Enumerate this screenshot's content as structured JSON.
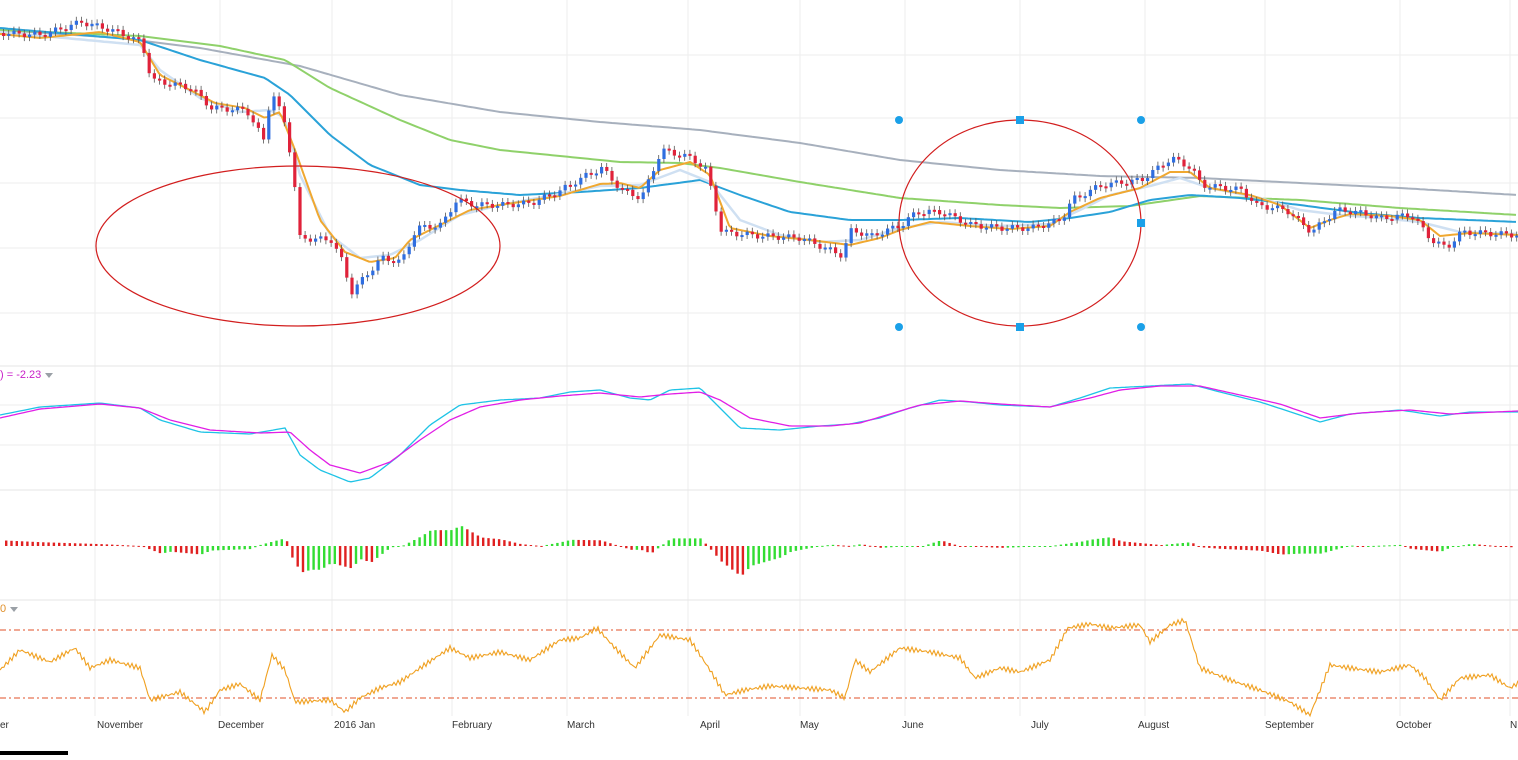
{
  "indicators": {
    "macd_label": ") = -2.23",
    "rsi_label": "0"
  },
  "colors": {
    "bull": "#2f6ee0",
    "bear": "#e0223a",
    "ema_orange": "#f0a830",
    "ema_lightblue": "#cfe0f2",
    "ema_blue": "#2aa2d8",
    "ema_green": "#8fd16a",
    "ema_gray": "#a7b0bd",
    "macd_line": "#1ec3e6",
    "signal_line": "#e11ee6",
    "hist_up": "#33dd33",
    "hist_down": "#e02020",
    "rsi": "#f0a020",
    "rsi_levels": "#e0502a",
    "annotation": "#d21e1e",
    "handle": "#1aa0e8"
  },
  "chart_data": {
    "type": "line",
    "x_axis_labels": [
      "er",
      "November",
      "December",
      "2016 Jan",
      "February",
      "March",
      "April",
      "May",
      "June",
      "July",
      "August",
      "September",
      "October",
      "N"
    ],
    "price_series": [
      {
        "values": [
          125,
          126,
          124,
          127,
          129,
          125,
          121,
          116,
          110,
          98,
          103,
          112,
          118,
          120,
          122,
          127,
          121,
          116,
          118,
          105,
          112,
          111,
          116,
          130,
          125,
          118,
          127,
          129,
          128,
          124,
          123,
          125,
          127,
          129,
          131,
          128,
          125,
          126,
          122,
          120,
          116,
          118,
          126,
          131,
          130,
          127,
          125,
          124,
          120,
          118,
          113,
          109
        ]
      }
    ],
    "indicator_panels": [
      "MACD",
      "MACD histogram",
      "RSI"
    ],
    "annotations": [
      "ellipse",
      "ellipse"
    ]
  }
}
